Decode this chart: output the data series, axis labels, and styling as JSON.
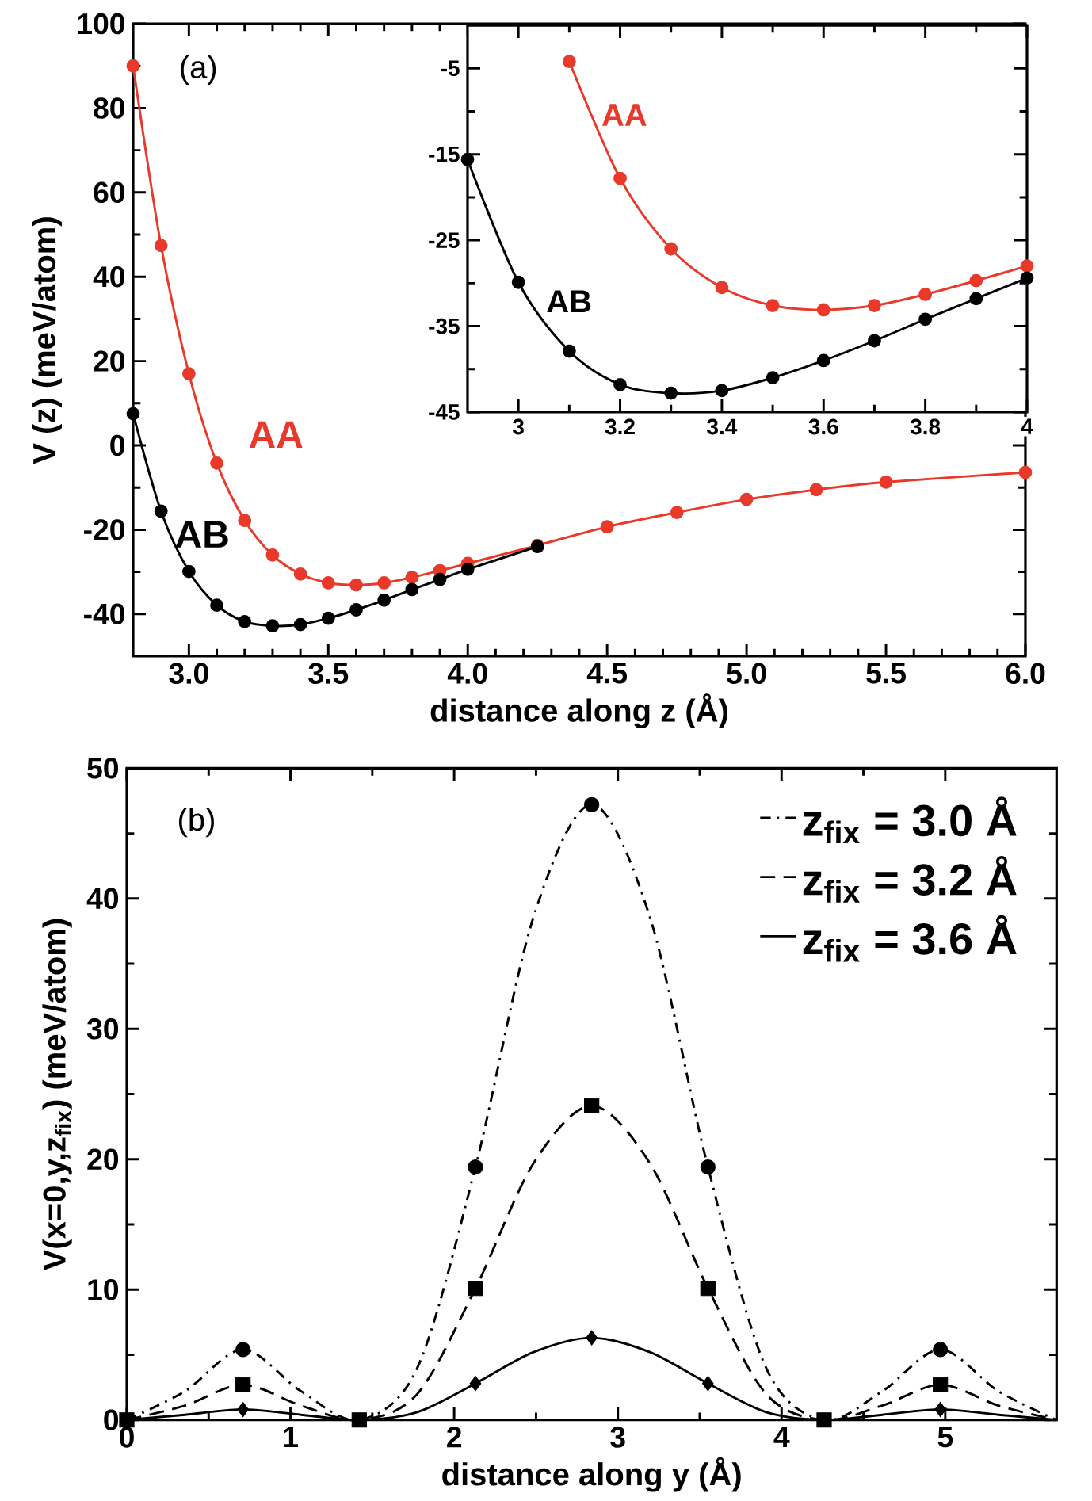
{
  "chart_data": [
    {
      "type": "line",
      "xlabel": "distance along z (Å)",
      "ylabel": "V (z) (meV/atom)",
      "xlim": [
        2.8,
        6.0
      ],
      "ylim": [
        -50,
        100
      ],
      "xticks": [
        {
          "value": 3,
          "label": "3.0"
        },
        {
          "value": 3.5,
          "label": "3.5"
        },
        {
          "value": 4,
          "label": "4.0"
        },
        {
          "value": 4.5,
          "label": "4.5"
        },
        {
          "value": 5,
          "label": "5.0"
        },
        {
          "value": 5.5,
          "label": "5.5"
        },
        {
          "value": 6,
          "label": "6.0"
        }
      ],
      "yticks": [
        -40,
        -20,
        0,
        20,
        40,
        60,
        80,
        100
      ],
      "marker": "circle",
      "annotations": [
        "(a)"
      ],
      "series": [
        {
          "name": "AA",
          "color": "#e8392a",
          "x": [
            2.8,
            2.9,
            3.0,
            3.1,
            3.2,
            3.3,
            3.4,
            3.5,
            3.6,
            3.7,
            3.8,
            3.9,
            4.0,
            4.25,
            4.5,
            4.75,
            5.0,
            5.25,
            5.5,
            6.0
          ],
          "values": [
            90,
            47.4,
            17,
            -4.2,
            -17.8,
            -26.0,
            -30.5,
            -32.6,
            -33.1,
            -32.6,
            -31.3,
            -29.7,
            -28.0,
            -23.7,
            -19.3,
            -15.9,
            -12.8,
            -10.5,
            -8.7,
            -6.4
          ]
        },
        {
          "name": "AB",
          "color": "#000000",
          "x": [
            2.8,
            2.9,
            3.0,
            3.1,
            3.2,
            3.3,
            3.4,
            3.5,
            3.6,
            3.7,
            3.8,
            3.9,
            4.0,
            4.25
          ],
          "values": [
            7.5,
            -15.6,
            -29.9,
            -37.9,
            -41.8,
            -42.8,
            -42.5,
            -41.0,
            -39.0,
            -36.7,
            -34.2,
            -31.8,
            -29.4,
            -24.0
          ]
        }
      ]
    },
    {
      "type": "line",
      "xlim": [
        2.9,
        4.0
      ],
      "ylim": [
        -45,
        0
      ],
      "xticks": [
        3,
        3.2,
        3.4,
        3.6,
        3.8,
        4
      ],
      "yticks": [
        -45,
        -35,
        -25,
        -15,
        -5
      ],
      "marker": "circle",
      "series": [
        {
          "name": "AA",
          "color": "#e8392a",
          "x": [
            3.1,
            3.2,
            3.3,
            3.4,
            3.5,
            3.6,
            3.7,
            3.8,
            3.9,
            4.0
          ],
          "values": [
            -4.2,
            -17.8,
            -26.0,
            -30.5,
            -32.6,
            -33.1,
            -32.6,
            -31.3,
            -29.7,
            -28.0
          ]
        },
        {
          "name": "AB",
          "color": "#000000",
          "x": [
            2.9,
            3.0,
            3.1,
            3.2,
            3.3,
            3.4,
            3.5,
            3.6,
            3.7,
            3.8,
            3.9,
            4.0
          ],
          "values": [
            -15.6,
            -29.9,
            -37.9,
            -41.8,
            -42.8,
            -42.5,
            -41.0,
            -39.0,
            -36.7,
            -34.2,
            -31.8,
            -29.4
          ]
        }
      ]
    },
    {
      "type": "line",
      "xlabel": "distance along y (Å)",
      "ylabel": "V(x=0,y,z$_{fix}$) (meV/atom)",
      "xlim": [
        0,
        5.68
      ],
      "ylim": [
        0,
        50
      ],
      "xticks": [
        0,
        1,
        2,
        3,
        4,
        5
      ],
      "yticks": [
        0,
        10,
        20,
        30,
        40,
        50
      ],
      "legend": "top right",
      "annotations": [
        "(b)"
      ],
      "series": [
        {
          "name": "z$_{fix}$ = 3.0 Å",
          "color": "#000000",
          "line_style": "dashdot",
          "marker": "none",
          "x": [
            0,
            0.355,
            0.71,
            1.065,
            1.42,
            1.775,
            2.13,
            2.485,
            2.84,
            3.195,
            3.55,
            3.905,
            4.26,
            4.615,
            4.97,
            5.325,
            5.68
          ],
          "values": [
            0,
            2.2,
            5.4,
            2.2,
            0,
            4.0,
            19.4,
            38.6,
            47.2,
            38.6,
            19.4,
            4.0,
            0,
            2.2,
            5.4,
            2.2,
            0
          ]
        },
        {
          "name": "z$_{fix}$ = 3.2 Å",
          "color": "#000000",
          "line_style": "dashed",
          "marker": "none",
          "x": [
            0,
            0.355,
            0.71,
            1.065,
            1.42,
            1.775,
            2.13,
            2.485,
            2.84,
            3.195,
            3.55,
            3.905,
            4.26,
            4.615,
            4.97,
            5.325,
            5.68
          ],
          "values": [
            0,
            1.1,
            2.7,
            1.1,
            0,
            2.0,
            10.1,
            19.7,
            24.1,
            19.7,
            10.1,
            2.0,
            0,
            1.1,
            2.7,
            1.1,
            0
          ]
        },
        {
          "name": "z$_{fix}$ = 3.6 Å",
          "color": "#000000",
          "line_style": "solid",
          "marker": "none",
          "x": [
            0,
            0.355,
            0.71,
            1.065,
            1.42,
            1.775,
            2.13,
            2.485,
            2.84,
            3.195,
            3.55,
            3.905,
            4.26,
            4.615,
            4.97,
            5.325,
            5.68
          ],
          "values": [
            0,
            0.4,
            0.8,
            0.4,
            0,
            0.6,
            2.8,
            5.2,
            6.3,
            5.2,
            2.8,
            0.6,
            0,
            0.4,
            0.8,
            0.4,
            0
          ]
        },
        {
          "type": "scatter",
          "color": "#000000",
          "marker": "circle",
          "x": [
            0.71,
            2.13,
            2.84,
            3.55,
            4.97
          ],
          "values": [
            5.4,
            19.4,
            47.2,
            19.4,
            5.4
          ]
        },
        {
          "type": "scatter",
          "color": "#000000",
          "marker": "square",
          "x": [
            0,
            0.71,
            1.42,
            2.13,
            2.84,
            3.55,
            4.26,
            4.97
          ],
          "values": [
            0,
            2.7,
            0,
            10.1,
            24.1,
            10.1,
            0,
            2.7
          ]
        },
        {
          "type": "scatter",
          "color": "#000000",
          "marker": "diamond",
          "x": [
            0.71,
            2.13,
            2.84,
            3.55,
            4.97
          ],
          "values": [
            0.8,
            2.8,
            6.3,
            2.8,
            0.8
          ]
        }
      ]
    }
  ]
}
